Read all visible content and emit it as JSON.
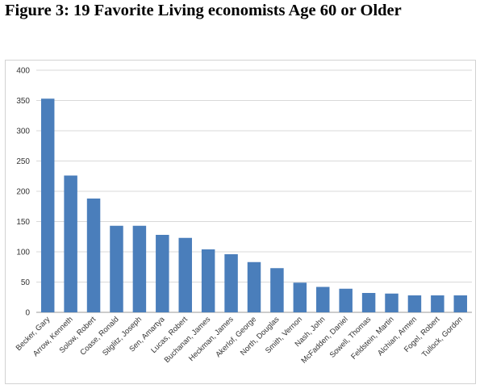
{
  "page_title": "Figure 3: 19 Favorite Living economists Age 60 or Older",
  "chart_data": {
    "type": "bar",
    "title": "",
    "xlabel": "",
    "ylabel": "",
    "ylim": [
      0,
      400
    ],
    "yticks": [
      0,
      50,
      100,
      150,
      200,
      250,
      300,
      350,
      400
    ],
    "grid": true,
    "bar_color": "#4a7ebb",
    "categories": [
      "Becker, Gary",
      "Arrow, Kenneth",
      "Solow, Robert",
      "Coase, Ronald",
      "Stiglitz, Joseph",
      "Sen, Amartya",
      "Lucas, Robert",
      "Buchanan, James",
      "Heckman, James",
      "Akerlof, George",
      "North, Douglas",
      "Smith, Vernon",
      "Nash, John",
      "McFadden, Daniel",
      "Sowell, Thomas",
      "Feldstein, Martin",
      "Alchian, Armen",
      "Fogel, Robert",
      "Tullock, Gordon"
    ],
    "values": [
      353,
      226,
      188,
      143,
      143,
      128,
      123,
      104,
      96,
      83,
      73,
      49,
      42,
      39,
      32,
      31,
      28,
      28,
      28
    ]
  }
}
